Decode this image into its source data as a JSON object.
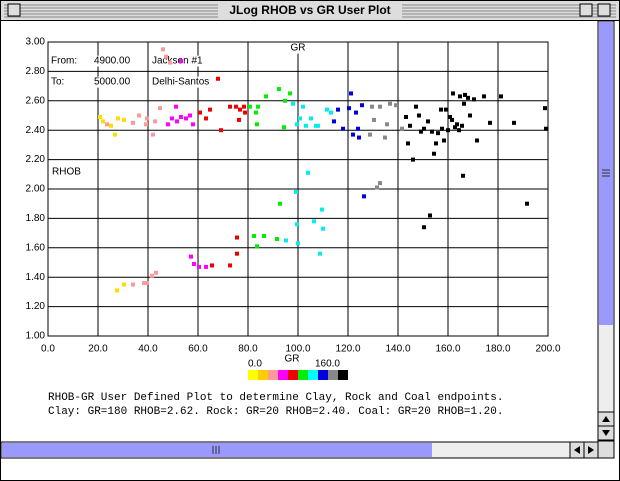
{
  "window": {
    "title": "JLog RHOB vs GR User Plot"
  },
  "info": [
    [
      "From:",
      "4900.00",
      "Jackson #1"
    ],
    [
      "To:",
      "5000.00",
      "Delhi-Santos"
    ]
  ],
  "notes": [
    "RHOB-GR User Defined Plot to determine Clay, Rock and Coal endpoints.",
    "Clay: GR=180  RHOB=2.62.  Rock: GR=20  RHOB=2.40.  Coal: GR=20  RHOB=1.20."
  ],
  "chart_data": {
    "type": "scatter",
    "xlabel": "GR",
    "ylabel": "RHOB",
    "top_label": "GR",
    "xlim": [
      0,
      200
    ],
    "ylim": [
      1,
      3
    ],
    "xticks": [
      {
        "value": 0,
        "label": "0.0"
      },
      {
        "value": 20,
        "label": "20.0"
      },
      {
        "value": 40,
        "label": "40.0"
      },
      {
        "value": 60,
        "label": "60.0"
      },
      {
        "value": 80,
        "label": "80.0"
      },
      {
        "value": 100,
        "label": "100.0"
      },
      {
        "value": 120,
        "label": "120.0"
      },
      {
        "value": 140,
        "label": "140.0"
      },
      {
        "value": 160,
        "label": "160.0"
      },
      {
        "value": 180,
        "label": "180.0"
      },
      {
        "value": 200,
        "label": "200.0"
      }
    ],
    "yticks": [
      {
        "value": 1,
        "label": "1.00"
      },
      {
        "value": 1.2,
        "label": "1.20"
      },
      {
        "value": 1.4,
        "label": "1.40"
      },
      {
        "value": 1.6,
        "label": "1.60"
      },
      {
        "value": 1.8,
        "label": "1.80"
      },
      {
        "value": 2,
        "label": "2.00"
      },
      {
        "value": 2.2,
        "label": "2.20"
      },
      {
        "value": 2.4,
        "label": "2.40"
      },
      {
        "value": 2.6,
        "label": "2.60"
      },
      {
        "value": 2.8,
        "label": "2.80"
      },
      {
        "value": 3,
        "label": "3.00"
      }
    ],
    "grid": true,
    "colorbar": {
      "xlabel": "GR",
      "range": [
        {
          "value": 0,
          "label": "0.0"
        },
        {
          "value": 160,
          "label": "160.0"
        }
      ],
      "colors": [
        "#ffff00",
        "#ffcc00",
        "#ff9999",
        "#ff00ff",
        "#ee0000",
        "#00ee00",
        "#00ffff",
        "#0000dd",
        "#888888",
        "#000000"
      ]
    },
    "series": [
      {
        "color": "#ffdd00",
        "x": [
          20.8,
          22,
          25.2,
          28,
          26.8,
          30.4,
          27.6,
          30.4
        ],
        "values": [
          2.49,
          2.46,
          2.43,
          2.48,
          2.37,
          2.47,
          1.31,
          1.35
        ]
      },
      {
        "color": "#ff9999",
        "x": [
          23.6,
          34,
          36.4,
          39.2,
          39.6,
          42,
          42.8,
          44.8,
          46,
          48.8,
          47.2,
          34,
          38.4,
          39.6,
          41.6,
          43.2
        ],
        "values": [
          2.44,
          2.45,
          2.5,
          2.44,
          2.48,
          2.37,
          2.46,
          2.55,
          2.95,
          2.86,
          2.9,
          1.35,
          1.36,
          1.36,
          1.41,
          1.43
        ]
      },
      {
        "color": "#ff00ff",
        "x": [
          48,
          49.6,
          51.6,
          53.2,
          55.2,
          56.8,
          51.2,
          58,
          53.2,
          57.2,
          58.4,
          60.4,
          63.2
        ],
        "values": [
          2.44,
          2.48,
          2.46,
          2.49,
          2.48,
          2.5,
          2.56,
          2.44,
          2.87,
          1.54,
          1.49,
          1.47,
          1.47
        ]
      },
      {
        "color": "#ee0000",
        "x": [
          60.8,
          63.2,
          64.8,
          68,
          69.2,
          72.8,
          75.2,
          76.8,
          78.4,
          78.8,
          76.4,
          65.6,
          72.8,
          75.6,
          75.6
        ],
        "values": [
          2.52,
          2.48,
          2.54,
          2.75,
          2.4,
          2.56,
          2.56,
          2.54,
          2.56,
          2.52,
          2.47,
          1.48,
          1.48,
          1.56,
          1.67
        ]
      },
      {
        "color": "#00ee00",
        "x": [
          80.8,
          83.2,
          84,
          83.6,
          87.2,
          92.4,
          94.8,
          94.4,
          96.8,
          82.4,
          83.6,
          86.4,
          91.6,
          92.8
        ],
        "values": [
          2.56,
          2.52,
          2.56,
          2.44,
          2.63,
          2.68,
          2.6,
          2.42,
          2.65,
          1.68,
          1.61,
          1.68,
          1.66,
          1.9
        ]
      },
      {
        "color": "#00eeee",
        "x": [
          98,
          99.6,
          100.8,
          102,
          103.2,
          105.2,
          107.2,
          108,
          111.6,
          113.2,
          99.2,
          104,
          99.6,
          106.4,
          109.6,
          95.2,
          100,
          108.8,
          110
        ],
        "values": [
          2.58,
          2.44,
          2.48,
          2.56,
          2.43,
          2.48,
          2.43,
          2.43,
          2.54,
          2.52,
          1.98,
          2.11,
          1.76,
          1.78,
          1.86,
          1.65,
          1.63,
          1.56,
          1.73
        ]
      },
      {
        "color": "#0000dd",
        "x": [
          114.4,
          116,
          118,
          120.4,
          121.2,
          123.2,
          122,
          124.4,
          124,
          125.6,
          126.4
        ],
        "values": [
          2.46,
          2.54,
          2.41,
          2.55,
          2.65,
          2.52,
          2.37,
          2.35,
          2.41,
          2.57,
          1.95
        ]
      },
      {
        "color": "#888888",
        "x": [
          129.6,
          130.4,
          132.8,
          134.8,
          135.6,
          136.8,
          139.2,
          141.6,
          131.6,
          132.8,
          128.8
        ],
        "values": [
          2.56,
          2.47,
          2.56,
          2.35,
          2.44,
          2.58,
          2.57,
          2.41,
          2.01,
          2.04,
          2.37
        ]
      },
      {
        "color": "#000000",
        "x": [
          143.2,
          144.8,
          146,
          147.2,
          148.4,
          149.2,
          150.4,
          152,
          153.6,
          154.4,
          155.2,
          156,
          157.2,
          157.6,
          159.2,
          160,
          160.8,
          161.6,
          162,
          162.8,
          163.6,
          164.4,
          164.8,
          165.6,
          166.4,
          166.8,
          168,
          168.8,
          170.4,
          171.6,
          174.4,
          176.8,
          181.2,
          186.4,
          198.8,
          199.2,
          191.6,
          152.8,
          150.4,
          166,
          158.4,
          144
        ],
        "values": [
          2.49,
          2.43,
          2.2,
          2.56,
          2.5,
          2.39,
          2.41,
          2.46,
          2.39,
          2.24,
          2.31,
          2.38,
          2.54,
          2.41,
          2.54,
          2.4,
          2.49,
          2.47,
          2.65,
          2.42,
          2.44,
          2.4,
          2.63,
          2.43,
          2.58,
          2.64,
          2.62,
          2.5,
          2.61,
          2.33,
          2.63,
          2.45,
          2.63,
          2.45,
          2.55,
          2.41,
          1.9,
          1.82,
          1.74,
          2.09,
          2.33,
          2.31
        ]
      }
    ]
  }
}
